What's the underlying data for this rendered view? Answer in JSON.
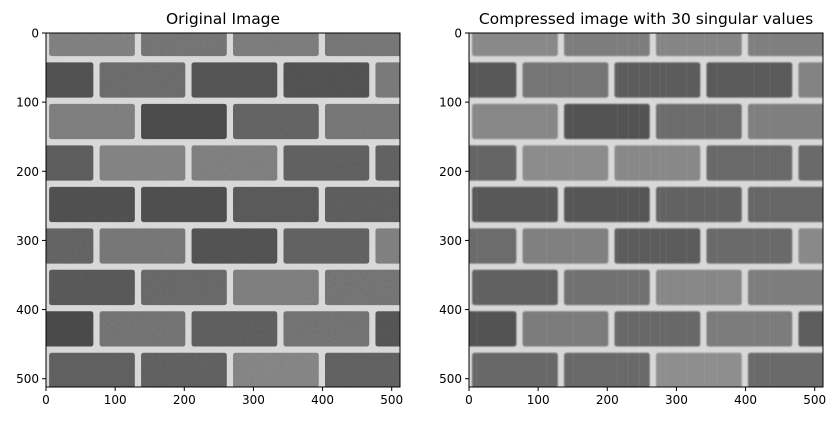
{
  "chart_data": [
    {
      "type": "image",
      "title": "Original Image",
      "image_description": "grayscale photograph of a brick wall with light mortar lines",
      "xlim": [
        0,
        512
      ],
      "ylim": [
        512,
        0
      ],
      "xticks": [
        0,
        100,
        200,
        300,
        400,
        500
      ],
      "yticks": [
        0,
        100,
        200,
        300,
        400,
        500
      ],
      "colormap": "gray"
    },
    {
      "type": "image",
      "title": "Compressed image with 30 singular values",
      "image_description": "same brick wall reconstructed from 30 singular values, slightly smoothed with faint streaks",
      "xlim": [
        0,
        512
      ],
      "ylim": [
        512,
        0
      ],
      "xticks": [
        0,
        100,
        200,
        300,
        400,
        500
      ],
      "yticks": [
        0,
        100,
        200,
        300,
        400,
        500
      ],
      "colormap": "gray"
    }
  ]
}
